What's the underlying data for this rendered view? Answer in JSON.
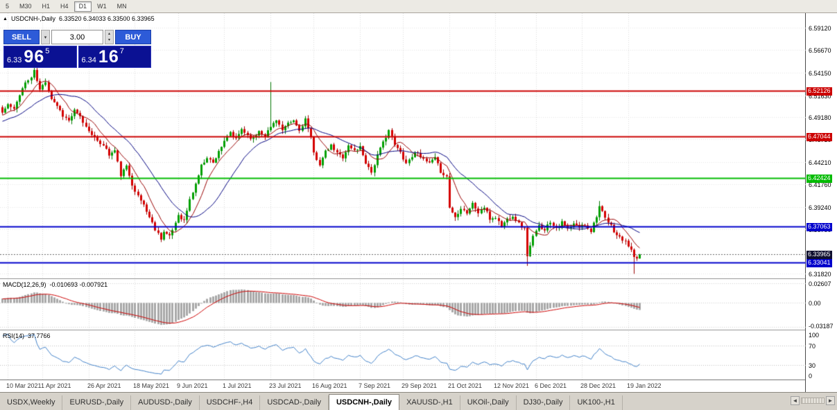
{
  "toolbar": {
    "timeframes": [
      {
        "label": "5",
        "active": false
      },
      {
        "label": "M30",
        "active": false
      },
      {
        "label": "H1",
        "active": false
      },
      {
        "label": "H4",
        "active": false
      },
      {
        "label": "D1",
        "active": true
      },
      {
        "label": "W1",
        "active": false
      },
      {
        "label": "MN",
        "active": false
      }
    ]
  },
  "chart": {
    "collapse_marker": "▲",
    "title": "USDCNH-,Daily",
    "ohlc_text": "6.33520 6.34033 6.33500 6.33965"
  },
  "trade_panel": {
    "sell_label": "SELL",
    "buy_label": "BUY",
    "volume": "3.00",
    "dropdown_icon": "▾",
    "spin_up": "▴",
    "spin_down": "▾",
    "sell_price": {
      "prefix": "6.33",
      "big": "96",
      "sup": "5"
    },
    "buy_price": {
      "prefix": "6.34",
      "big": "16",
      "sup": "7"
    }
  },
  "indicators": {
    "macd_label": "MACD(12,26,9)",
    "macd_values": "-0.010693 -0.007921",
    "rsi_label": "RSI(14)",
    "rsi_value": "37.7766"
  },
  "tabs": {
    "scroll_left": "◄",
    "scroll_right": "►",
    "items": [
      {
        "label": "USDX,Weekly",
        "active": false
      },
      {
        "label": "EURUSD-,Daily",
        "active": false
      },
      {
        "label": "AUDUSD-,Daily",
        "active": false
      },
      {
        "label": "USDCHF-,H4",
        "active": false
      },
      {
        "label": "USDCAD-,Daily",
        "active": false
      },
      {
        "label": "USDCNH-,Daily",
        "active": true
      },
      {
        "label": "XAUUSD-,H1",
        "active": false
      },
      {
        "label": "UKOil-,Daily",
        "active": false
      },
      {
        "label": "DJ30-,Daily",
        "active": false
      },
      {
        "label": "UK100-,H1",
        "active": false
      }
    ]
  },
  "chart_data": {
    "type": "candlestick",
    "symbol": "USDCNH",
    "timeframe": "Daily",
    "last_bar": {
      "open": 6.3352,
      "high": 6.34033,
      "low": 6.335,
      "close": 6.33965
    },
    "price_min": 6.3131,
    "price_max": 6.6074,
    "price_ticks": [
      "6.59120",
      "6.56670",
      "6.54150",
      "6.51630",
      "6.49180",
      "6.46730",
      "6.44210",
      "6.41760",
      "6.39240",
      "6.36790",
      "6.31820"
    ],
    "levels": [
      {
        "value": "6.52126",
        "color": "#CC0000"
      },
      {
        "value": "6.47044",
        "color": "#CC0000"
      },
      {
        "value": "6.42424",
        "color": "#00BB00"
      },
      {
        "value": "6.37063",
        "color": "#0000CC"
      },
      {
        "value": "6.33041",
        "color": "#0000CC"
      }
    ],
    "current_price": {
      "value": "6.33965",
      "badge_color": "#10102f"
    },
    "candle_count": 222,
    "seed": 11,
    "bull_color": "#00A000",
    "bear_color": "#D40000",
    "close_anchors": [
      [
        0,
        6.497
      ],
      [
        2,
        6.506
      ],
      [
        4,
        6.5
      ],
      [
        6,
        6.518
      ],
      [
        8,
        6.53
      ],
      [
        10,
        6.536
      ],
      [
        11,
        6.543
      ],
      [
        13,
        6.522
      ],
      [
        15,
        6.532
      ],
      [
        17,
        6.513
      ],
      [
        19,
        6.505
      ],
      [
        21,
        6.494
      ],
      [
        23,
        6.488
      ],
      [
        25,
        6.499
      ],
      [
        27,
        6.492
      ],
      [
        29,
        6.481
      ],
      [
        31,
        6.474
      ],
      [
        33,
        6.464
      ],
      [
        35,
        6.462
      ],
      [
        37,
        6.45
      ],
      [
        39,
        6.455
      ],
      [
        41,
        6.428
      ],
      [
        43,
        6.437
      ],
      [
        45,
        6.418
      ],
      [
        47,
        6.404
      ],
      [
        49,
        6.395
      ],
      [
        51,
        6.381
      ],
      [
        53,
        6.368
      ],
      [
        55,
        6.358
      ],
      [
        56,
        6.365
      ],
      [
        58,
        6.359
      ],
      [
        60,
        6.375
      ],
      [
        61,
        6.384
      ],
      [
        63,
        6.377
      ],
      [
        65,
        6.4
      ],
      [
        67,
        6.418
      ],
      [
        69,
        6.438
      ],
      [
        71,
        6.448
      ],
      [
        73,
        6.441
      ],
      [
        75,
        6.455
      ],
      [
        77,
        6.464
      ],
      [
        79,
        6.475
      ],
      [
        81,
        6.467
      ],
      [
        83,
        6.479
      ],
      [
        85,
        6.472
      ],
      [
        87,
        6.468
      ],
      [
        89,
        6.477
      ],
      [
        91,
        6.472
      ],
      [
        93,
        6.481
      ],
      [
        95,
        6.49
      ],
      [
        97,
        6.477
      ],
      [
        99,
        6.484
      ],
      [
        101,
        6.488
      ],
      [
        103,
        6.477
      ],
      [
        105,
        6.49
      ],
      [
        107,
        6.468
      ],
      [
        108,
        6.452
      ],
      [
        110,
        6.44
      ],
      [
        112,
        6.453
      ],
      [
        114,
        6.46
      ],
      [
        116,
        6.452
      ],
      [
        118,
        6.448
      ],
      [
        120,
        6.46
      ],
      [
        122,
        6.455
      ],
      [
        124,
        6.459
      ],
      [
        126,
        6.442
      ],
      [
        128,
        6.431
      ],
      [
        130,
        6.449
      ],
      [
        132,
        6.464
      ],
      [
        134,
        6.478
      ],
      [
        136,
        6.461
      ],
      [
        138,
        6.453
      ],
      [
        140,
        6.441
      ],
      [
        142,
        6.449
      ],
      [
        144,
        6.454
      ],
      [
        146,
        6.444
      ],
      [
        148,
        6.441
      ],
      [
        150,
        6.446
      ],
      [
        152,
        6.432
      ],
      [
        154,
        6.426
      ],
      [
        155,
        6.392
      ],
      [
        157,
        6.381
      ],
      [
        159,
        6.392
      ],
      [
        161,
        6.386
      ],
      [
        163,
        6.396
      ],
      [
        165,
        6.386
      ],
      [
        167,
        6.392
      ],
      [
        169,
        6.379
      ],
      [
        171,
        6.381
      ],
      [
        173,
        6.371
      ],
      [
        175,
        6.379
      ],
      [
        177,
        6.383
      ],
      [
        179,
        6.374
      ],
      [
        181,
        6.368
      ],
      [
        182,
        6.339
      ],
      [
        184,
        6.359
      ],
      [
        186,
        6.371
      ],
      [
        188,
        6.368
      ],
      [
        190,
        6.376
      ],
      [
        192,
        6.37
      ],
      [
        194,
        6.375
      ],
      [
        196,
        6.368
      ],
      [
        198,
        6.373
      ],
      [
        200,
        6.37
      ],
      [
        202,
        6.373
      ],
      [
        204,
        6.366
      ],
      [
        206,
        6.383
      ],
      [
        207,
        6.393
      ],
      [
        209,
        6.379
      ],
      [
        211,
        6.371
      ],
      [
        213,
        6.361
      ],
      [
        215,
        6.356
      ],
      [
        217,
        6.35
      ],
      [
        219,
        6.337
      ],
      [
        220,
        6.3352
      ],
      [
        221,
        6.33965
      ]
    ],
    "wick_overrides": [
      {
        "i": 11,
        "high": 6.549
      },
      {
        "i": 93,
        "high": 6.531
      },
      {
        "i": 155,
        "high": 6.43
      },
      {
        "i": 182,
        "low": 6.327
      },
      {
        "i": 207,
        "high": 6.399
      },
      {
        "i": 219,
        "low": 6.3182
      }
    ],
    "date_labels": [
      {
        "index": 2,
        "label": "10 Mar 2021"
      },
      {
        "index": 14,
        "label": "1 Apr 2021"
      },
      {
        "index": 30,
        "label": "26 Apr 2021"
      },
      {
        "index": 46,
        "label": "18 May 2021"
      },
      {
        "index": 61,
        "label": "9 Jun 2021"
      },
      {
        "index": 77,
        "label": "1 Jul 2021"
      },
      {
        "index": 93,
        "label": "23 Jul 2021"
      },
      {
        "index": 108,
        "label": "16 Aug 2021"
      },
      {
        "index": 124,
        "label": "7 Sep 2021"
      },
      {
        "index": 139,
        "label": "29 Sep 2021"
      },
      {
        "index": 155,
        "label": "21 Oct 2021"
      },
      {
        "index": 171,
        "label": "12 Nov 2021"
      },
      {
        "index": 185,
        "label": "6 Dec 2021"
      },
      {
        "index": 201,
        "label": "28 Dec 2021"
      },
      {
        "index": 217,
        "label": "19 Jan 2022"
      }
    ],
    "moving_averages": [
      {
        "period": 8,
        "color": "#990000"
      },
      {
        "period": 21,
        "color": "#000080"
      }
    ],
    "macd": {
      "fast": 12,
      "slow": 26,
      "signal": 9,
      "max": 0.0307,
      "min": -0.0355,
      "ticks": [
        "0.02607",
        "0.00",
        "-0.03187"
      ],
      "hist_color": "#a8a8a8",
      "signal_color": "#CC0000"
    },
    "rsi": {
      "period": 14,
      "max": 100,
      "min": 0,
      "level_lines": [
        70,
        30
      ],
      "ticks": [
        "100",
        "70",
        "30",
        "0"
      ],
      "color": "#4080C8"
    }
  }
}
